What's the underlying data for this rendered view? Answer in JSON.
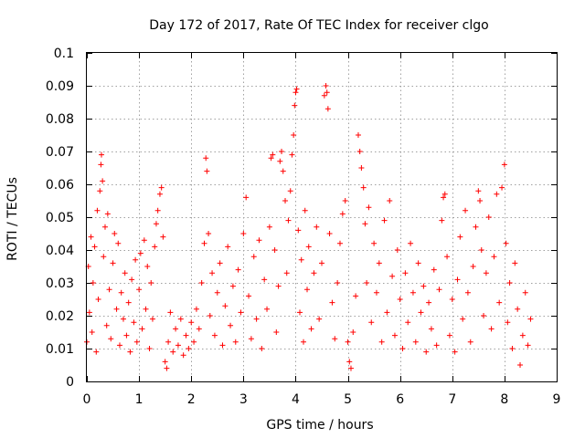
{
  "chart_data": {
    "type": "scatter",
    "title": "Day 172 of 2017, Rate Of TEC Index for receiver clgo",
    "xlabel": "GPS time / hours",
    "ylabel": "ROTI / TECUs",
    "xlim": [
      0,
      9
    ],
    "ylim": [
      0,
      0.1
    ],
    "x_ticks": [
      0,
      1,
      2,
      3,
      4,
      5,
      6,
      7,
      8,
      9
    ],
    "x_tick_labels": [
      "0",
      "1",
      "2",
      "3",
      "4",
      "5",
      "6",
      "7",
      "8",
      "9"
    ],
    "y_ticks": [
      0,
      0.01,
      0.02,
      0.03,
      0.04,
      0.05,
      0.06,
      0.07,
      0.08,
      0.09,
      0.1
    ],
    "y_tick_labels": [
      "0",
      "0.01",
      "0.02",
      "0.03",
      "0.04",
      "0.05",
      "0.06",
      "0.07",
      "0.08",
      "0.09",
      "0.1"
    ],
    "grid": true,
    "marker": "+",
    "color": "#ff0000",
    "series": [
      {
        "name": "ROTI",
        "points": [
          [
            0.0,
            0.012
          ],
          [
            0.03,
            0.035
          ],
          [
            0.05,
            0.021
          ],
          [
            0.08,
            0.044
          ],
          [
            0.1,
            0.015
          ],
          [
            0.12,
            0.03
          ],
          [
            0.15,
            0.041
          ],
          [
            0.18,
            0.009
          ],
          [
            0.2,
            0.052
          ],
          [
            0.22,
            0.025
          ],
          [
            0.25,
            0.058
          ],
          [
            0.27,
            0.066
          ],
          [
            0.28,
            0.069
          ],
          [
            0.3,
            0.061
          ],
          [
            0.32,
            0.038
          ],
          [
            0.35,
            0.047
          ],
          [
            0.38,
            0.017
          ],
          [
            0.4,
            0.051
          ],
          [
            0.43,
            0.028
          ],
          [
            0.46,
            0.013
          ],
          [
            0.5,
            0.036
          ],
          [
            0.53,
            0.045
          ],
          [
            0.57,
            0.022
          ],
          [
            0.6,
            0.042
          ],
          [
            0.63,
            0.011
          ],
          [
            0.66,
            0.027
          ],
          [
            0.7,
            0.019
          ],
          [
            0.73,
            0.033
          ],
          [
            0.76,
            0.014
          ],
          [
            0.8,
            0.024
          ],
          [
            0.83,
            0.009
          ],
          [
            0.86,
            0.031
          ],
          [
            0.9,
            0.018
          ],
          [
            0.93,
            0.037
          ],
          [
            0.96,
            0.012
          ],
          [
            1.0,
            0.028
          ],
          [
            1.03,
            0.039
          ],
          [
            1.06,
            0.016
          ],
          [
            1.1,
            0.043
          ],
          [
            1.13,
            0.022
          ],
          [
            1.16,
            0.035
          ],
          [
            1.2,
            0.01
          ],
          [
            1.23,
            0.03
          ],
          [
            1.26,
            0.019
          ],
          [
            1.3,
            0.041
          ],
          [
            1.33,
            0.048
          ],
          [
            1.36,
            0.052
          ],
          [
            1.4,
            0.057
          ],
          [
            1.43,
            0.059
          ],
          [
            1.46,
            0.044
          ],
          [
            1.5,
            0.006
          ],
          [
            1.53,
            0.004
          ],
          [
            1.56,
            0.012
          ],
          [
            1.6,
            0.021
          ],
          [
            1.65,
            0.009
          ],
          [
            1.7,
            0.016
          ],
          [
            1.75,
            0.011
          ],
          [
            1.8,
            0.019
          ],
          [
            1.85,
            0.008
          ],
          [
            1.9,
            0.014
          ],
          [
            1.95,
            0.01
          ],
          [
            2.0,
            0.018
          ],
          [
            2.05,
            0.012
          ],
          [
            2.1,
            0.022
          ],
          [
            2.15,
            0.016
          ],
          [
            2.2,
            0.03
          ],
          [
            2.25,
            0.042
          ],
          [
            2.28,
            0.068
          ],
          [
            2.3,
            0.064
          ],
          [
            2.33,
            0.045
          ],
          [
            2.36,
            0.02
          ],
          [
            2.4,
            0.033
          ],
          [
            2.45,
            0.014
          ],
          [
            2.5,
            0.027
          ],
          [
            2.55,
            0.036
          ],
          [
            2.6,
            0.011
          ],
          [
            2.65,
            0.023
          ],
          [
            2.7,
            0.041
          ],
          [
            2.75,
            0.017
          ],
          [
            2.8,
            0.029
          ],
          [
            2.85,
            0.012
          ],
          [
            2.9,
            0.034
          ],
          [
            2.95,
            0.021
          ],
          [
            3.0,
            0.045
          ],
          [
            3.05,
            0.056
          ],
          [
            3.1,
            0.026
          ],
          [
            3.15,
            0.013
          ],
          [
            3.2,
            0.038
          ],
          [
            3.25,
            0.019
          ],
          [
            3.3,
            0.043
          ],
          [
            3.35,
            0.01
          ],
          [
            3.4,
            0.031
          ],
          [
            3.45,
            0.022
          ],
          [
            3.5,
            0.047
          ],
          [
            3.53,
            0.068
          ],
          [
            3.56,
            0.069
          ],
          [
            3.6,
            0.04
          ],
          [
            3.63,
            0.015
          ],
          [
            3.67,
            0.029
          ],
          [
            3.7,
            0.067
          ],
          [
            3.73,
            0.07
          ],
          [
            3.76,
            0.064
          ],
          [
            3.8,
            0.055
          ],
          [
            3.83,
            0.033
          ],
          [
            3.86,
            0.049
          ],
          [
            3.9,
            0.058
          ],
          [
            3.93,
            0.069
          ],
          [
            3.96,
            0.075
          ],
          [
            3.98,
            0.084
          ],
          [
            4.0,
            0.088
          ],
          [
            4.02,
            0.089
          ],
          [
            4.05,
            0.046
          ],
          [
            4.08,
            0.021
          ],
          [
            4.11,
            0.037
          ],
          [
            4.15,
            0.012
          ],
          [
            4.18,
            0.052
          ],
          [
            4.22,
            0.028
          ],
          [
            4.25,
            0.041
          ],
          [
            4.3,
            0.016
          ],
          [
            4.35,
            0.033
          ],
          [
            4.4,
            0.047
          ],
          [
            4.45,
            0.019
          ],
          [
            4.5,
            0.036
          ],
          [
            4.55,
            0.087
          ],
          [
            4.58,
            0.09
          ],
          [
            4.6,
            0.088
          ],
          [
            4.62,
            0.083
          ],
          [
            4.65,
            0.045
          ],
          [
            4.7,
            0.024
          ],
          [
            4.75,
            0.013
          ],
          [
            4.8,
            0.03
          ],
          [
            4.85,
            0.042
          ],
          [
            4.9,
            0.051
          ],
          [
            4.95,
            0.055
          ],
          [
            5.0,
            0.012
          ],
          [
            5.03,
            0.006
          ],
          [
            5.06,
            0.004
          ],
          [
            5.1,
            0.015
          ],
          [
            5.15,
            0.026
          ],
          [
            5.2,
            0.075
          ],
          [
            5.23,
            0.07
          ],
          [
            5.26,
            0.065
          ],
          [
            5.3,
            0.059
          ],
          [
            5.33,
            0.048
          ],
          [
            5.36,
            0.03
          ],
          [
            5.4,
            0.053
          ],
          [
            5.45,
            0.018
          ],
          [
            5.5,
            0.042
          ],
          [
            5.55,
            0.027
          ],
          [
            5.6,
            0.036
          ],
          [
            5.65,
            0.012
          ],
          [
            5.7,
            0.049
          ],
          [
            5.75,
            0.021
          ],
          [
            5.8,
            0.055
          ],
          [
            5.85,
            0.032
          ],
          [
            5.9,
            0.014
          ],
          [
            5.95,
            0.04
          ],
          [
            6.0,
            0.025
          ],
          [
            6.05,
            0.01
          ],
          [
            6.1,
            0.033
          ],
          [
            6.15,
            0.018
          ],
          [
            6.2,
            0.042
          ],
          [
            6.25,
            0.027
          ],
          [
            6.3,
            0.012
          ],
          [
            6.35,
            0.036
          ],
          [
            6.4,
            0.021
          ],
          [
            6.45,
            0.029
          ],
          [
            6.5,
            0.009
          ],
          [
            6.55,
            0.024
          ],
          [
            6.6,
            0.016
          ],
          [
            6.65,
            0.034
          ],
          [
            6.7,
            0.011
          ],
          [
            6.75,
            0.028
          ],
          [
            6.8,
            0.049
          ],
          [
            6.83,
            0.056
          ],
          [
            6.86,
            0.057
          ],
          [
            6.9,
            0.038
          ],
          [
            6.95,
            0.014
          ],
          [
            7.0,
            0.025
          ],
          [
            7.05,
            0.009
          ],
          [
            7.1,
            0.031
          ],
          [
            7.15,
            0.044
          ],
          [
            7.2,
            0.019
          ],
          [
            7.25,
            0.052
          ],
          [
            7.3,
            0.027
          ],
          [
            7.35,
            0.012
          ],
          [
            7.4,
            0.035
          ],
          [
            7.45,
            0.047
          ],
          [
            7.5,
            0.058
          ],
          [
            7.53,
            0.055
          ],
          [
            7.56,
            0.04
          ],
          [
            7.6,
            0.02
          ],
          [
            7.65,
            0.033
          ],
          [
            7.7,
            0.05
          ],
          [
            7.75,
            0.016
          ],
          [
            7.8,
            0.038
          ],
          [
            7.85,
            0.057
          ],
          [
            7.9,
            0.024
          ],
          [
            7.95,
            0.059
          ],
          [
            8.0,
            0.066
          ],
          [
            8.03,
            0.042
          ],
          [
            8.06,
            0.018
          ],
          [
            8.1,
            0.03
          ],
          [
            8.15,
            0.01
          ],
          [
            8.2,
            0.036
          ],
          [
            8.25,
            0.022
          ],
          [
            8.3,
            0.005
          ],
          [
            8.35,
            0.014
          ],
          [
            8.4,
            0.027
          ],
          [
            8.45,
            0.011
          ],
          [
            8.5,
            0.019
          ]
        ]
      }
    ]
  }
}
